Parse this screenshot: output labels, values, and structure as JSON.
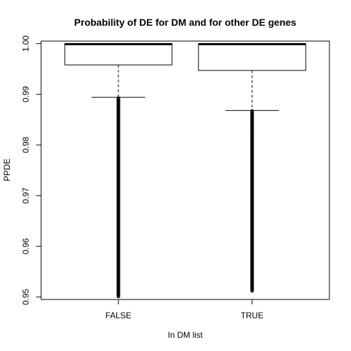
{
  "chart_data": {
    "type": "boxplot",
    "title": "Probability of DE for DM and for other DE genes",
    "xlabel": "In DM list",
    "ylabel": "PPDE",
    "categories": [
      "FALSE",
      "TRUE"
    ],
    "ylim": [
      0.9495,
      1.0005
    ],
    "yticks": [
      "0.95",
      "0.96",
      "0.97",
      "0.98",
      "0.99",
      "1.00"
    ],
    "boxes": [
      {
        "category": "FALSE",
        "whisker_low": 0.9894,
        "q1": 0.9958,
        "median": 0.9999,
        "q3": 1.0,
        "whisker_high": 1.0,
        "outlier_range": [
          0.9501,
          0.9893
        ]
      },
      {
        "category": "TRUE",
        "whisker_low": 0.9868,
        "q1": 0.9947,
        "median": 0.9999,
        "q3": 1.0,
        "whisker_high": 1.0,
        "outlier_range": [
          0.9512,
          0.9867
        ]
      }
    ],
    "colors": {
      "stroke": "#000000",
      "box_fill": "#ffffff"
    }
  }
}
